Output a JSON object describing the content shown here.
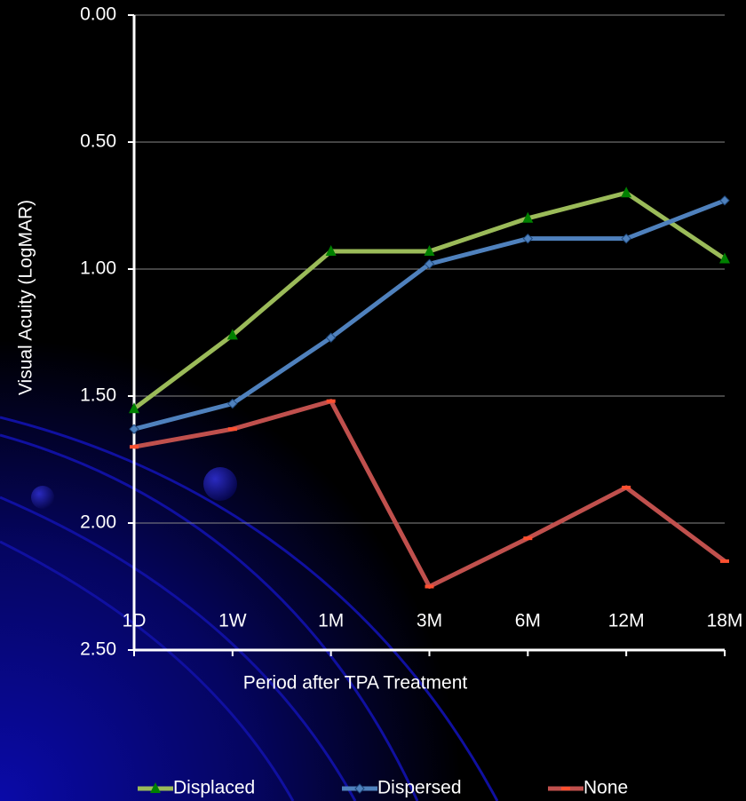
{
  "chart_data": {
    "type": "line",
    "x_label": "Period after TPA Treatment",
    "y_label": "Visual Acuity (LogMAR)",
    "categories": [
      "1D",
      "1W",
      "1M",
      "3M",
      "6M",
      "12M",
      "18M"
    ],
    "series": [
      {
        "name": "Displaced",
        "color": "#9bbb59",
        "marker": "triangle",
        "values": [
          1.55,
          1.26,
          0.93,
          0.93,
          0.8,
          0.7,
          0.96
        ]
      },
      {
        "name": "Dispersed",
        "color": "#4f81bd",
        "marker": "diamond",
        "values": [
          1.63,
          1.53,
          1.27,
          0.98,
          0.88,
          0.88,
          0.73
        ]
      },
      {
        "name": "None",
        "color": "#c0504d",
        "marker": "dash",
        "values": [
          1.7,
          1.63,
          1.52,
          2.25,
          2.06,
          1.86,
          2.15
        ]
      }
    ],
    "ylim": [
      0,
      2.5
    ],
    "y_reversed": true,
    "yticks": [
      {
        "value": 0,
        "label": "0.00"
      },
      {
        "value": 0.5,
        "label": "0.50"
      },
      {
        "value": 1,
        "label": "1.00"
      },
      {
        "value": 1.5,
        "label": "1.50"
      },
      {
        "value": 2,
        "label": "2.00"
      },
      {
        "value": 2.5,
        "label": "2.50"
      }
    ],
    "grid": true,
    "legend": "bottom"
  }
}
